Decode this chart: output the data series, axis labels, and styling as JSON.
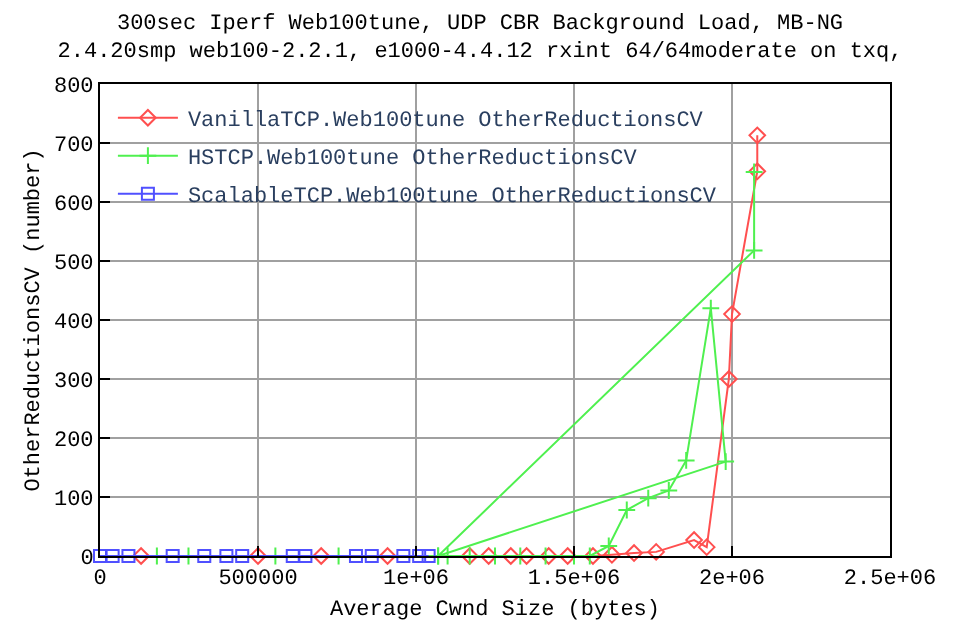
{
  "chart_data": {
    "type": "line",
    "title": "300sec Iperf Web100tune, UDP CBR Background Load, MB-NG",
    "subtitle": "2.4.20smp web100-2.2.1, e1000-4.4.12 rxint 64/64moderate on txq,",
    "xlabel": "Average Cwnd Size (bytes)",
    "ylabel": "OtherReductionsCV (number)",
    "xlim": [
      0,
      2500000
    ],
    "ylim": [
      0,
      800
    ],
    "xticks": [
      0,
      500000,
      {
        "value": 1000000,
        "label": "1e+06"
      },
      {
        "value": 1500000,
        "label": "1.5e+06"
      },
      {
        "value": 2000000,
        "label": "2e+06"
      },
      {
        "value": 2500000,
        "label": "2.5e+06"
      }
    ],
    "yticks": [
      0,
      100,
      200,
      300,
      400,
      500,
      600,
      700,
      800
    ],
    "grid": true,
    "legend": "top left",
    "line_style": "solid",
    "series": [
      {
        "name": "VanillaTCP.Web100tune OtherReductionsCV",
        "color": "#ff4f4f",
        "marker": "diamond",
        "x": [
          130000,
          500000,
          700000,
          910000,
          1170000,
          1230000,
          1300000,
          1350000,
          1420000,
          1480000,
          1560000,
          1620000,
          1690000,
          1760000,
          1880000,
          1920000,
          1990000,
          2000000,
          2080000,
          2080000
        ],
        "values": [
          0,
          0,
          0,
          0,
          0,
          0,
          0,
          0,
          0,
          0,
          0,
          2,
          5,
          7,
          27,
          15,
          300,
          410,
          652,
          713
        ]
      },
      {
        "name": "HSTCP.Web100tune OtherReductionsCV",
        "color": "#4ff04f",
        "marker": "cross",
        "x": [
          180000,
          280000,
          555000,
          755000,
          1070000,
          1100000,
          1170000,
          1250000,
          1330000,
          1410000,
          1500000,
          1550000,
          1610000,
          1667000,
          1735000,
          1800000,
          1855000,
          1933000,
          1980000,
          1070000,
          2070000,
          2070000
        ],
        "values": [
          0,
          0,
          0,
          0,
          0,
          0,
          0,
          0,
          0,
          0,
          0,
          0,
          17,
          78,
          98,
          111,
          162,
          420,
          160,
          0,
          518,
          651
        ]
      },
      {
        "name": "ScalableTCP.Web100tune OtherReductionsCV",
        "color": "#5050ff",
        "marker": "square",
        "x": [
          0,
          40000,
          90000,
          230000,
          330000,
          400000,
          450000,
          610000,
          650000,
          810000,
          860000,
          960000,
          1010000,
          1040000
        ],
        "values": [
          0,
          0,
          0,
          0,
          0,
          0,
          0,
          0,
          0,
          0,
          0,
          0,
          0,
          0
        ]
      }
    ]
  }
}
